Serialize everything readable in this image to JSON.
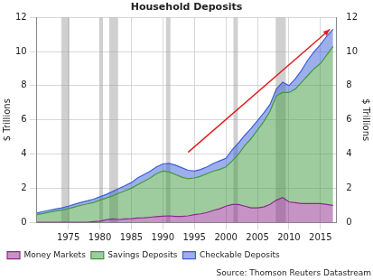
{
  "chart_data": {
    "type": "area",
    "title": "Household Deposits",
    "y_label": "$ Trillions",
    "y2_label": "$ Trillions",
    "source": "Source: Thomson Reuters Datastream",
    "stacked": true,
    "grid": true,
    "legend": "bottom",
    "x": [
      1970,
      1971,
      1972,
      1973,
      1974,
      1975,
      1976,
      1977,
      1978,
      1979,
      1980,
      1981,
      1982,
      1983,
      1984,
      1985,
      1986,
      1987,
      1988,
      1989,
      1990,
      1991,
      1992,
      1993,
      1994,
      1995,
      1996,
      1997,
      1998,
      1999,
      2000,
      2001,
      2002,
      2003,
      2004,
      2005,
      2006,
      2007,
      2008,
      2009,
      2010,
      2011,
      2012,
      2013,
      2014,
      2015,
      2016,
      2017
    ],
    "series": [
      {
        "name": "Money Markets",
        "color": "#8b2a8b",
        "values": [
          0,
          0,
          0,
          0,
          0,
          0,
          0,
          0,
          0.01,
          0.04,
          0.07,
          0.15,
          0.2,
          0.17,
          0.2,
          0.22,
          0.25,
          0.27,
          0.3,
          0.33,
          0.36,
          0.38,
          0.35,
          0.35,
          0.38,
          0.45,
          0.5,
          0.58,
          0.7,
          0.8,
          0.95,
          1.05,
          1.05,
          0.95,
          0.85,
          0.85,
          0.9,
          1.05,
          1.3,
          1.45,
          1.2,
          1.15,
          1.1,
          1.1,
          1.1,
          1.1,
          1.05,
          1.0
        ]
      },
      {
        "name": "Savings Deposits",
        "color": "#3f9a3f",
        "values": [
          0.45,
          0.52,
          0.6,
          0.66,
          0.72,
          0.8,
          0.9,
          1.0,
          1.07,
          1.13,
          1.23,
          1.27,
          1.35,
          1.53,
          1.65,
          1.78,
          1.95,
          2.13,
          2.3,
          2.52,
          2.64,
          2.57,
          2.45,
          2.3,
          2.17,
          2.15,
          2.2,
          2.27,
          2.3,
          2.3,
          2.3,
          2.55,
          2.95,
          3.55,
          4.05,
          4.55,
          5.0,
          5.45,
          6.1,
          6.15,
          6.4,
          6.65,
          7.1,
          7.5,
          7.9,
          8.2,
          8.75,
          9.3
        ]
      },
      {
        "name": "Checkable Deposits",
        "color": "#3c5fd6",
        "values": [
          0.1,
          0.11,
          0.11,
          0.12,
          0.13,
          0.15,
          0.16,
          0.17,
          0.18,
          0.19,
          0.2,
          0.21,
          0.25,
          0.28,
          0.3,
          0.33,
          0.4,
          0.4,
          0.4,
          0.4,
          0.42,
          0.5,
          0.55,
          0.55,
          0.5,
          0.4,
          0.4,
          0.4,
          0.45,
          0.5,
          0.5,
          0.65,
          0.65,
          0.6,
          0.6,
          0.55,
          0.5,
          0.4,
          0.4,
          0.6,
          0.4,
          0.6,
          0.7,
          0.9,
          1.0,
          1.1,
          1.1,
          1.0
        ]
      }
    ],
    "xlim": [
      1970,
      2017.5
    ],
    "xticks": [
      1975,
      1980,
      1985,
      1990,
      1995,
      2000,
      2005,
      2010,
      2015
    ],
    "ylim": [
      0,
      12
    ],
    "yticks": [
      0,
      2,
      4,
      6,
      8,
      10,
      12
    ],
    "y2lim": [
      0,
      12
    ],
    "y2ticks": [
      0,
      2,
      4,
      6,
      8,
      10,
      12
    ],
    "recessions": [
      [
        1973.9,
        1975.2
      ],
      [
        1980.0,
        1980.5
      ],
      [
        1981.5,
        1982.9
      ],
      [
        1990.5,
        1991.2
      ],
      [
        2001.2,
        2001.9
      ],
      [
        2007.9,
        2009.5
      ]
    ],
    "arrow": {
      "from": [
        1994,
        4.1
      ],
      "to": [
        2016.5,
        11.3
      ],
      "color": "#e02020"
    }
  }
}
